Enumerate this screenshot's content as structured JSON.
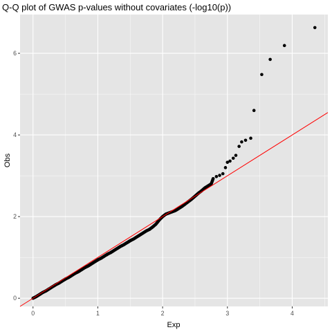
{
  "chart_data": {
    "type": "scatter",
    "title": "Q-Q plot of GWAS p-values without covariates (-log10(p))",
    "xlabel": "Exp",
    "ylabel": "Obs",
    "xlim": [
      -0.2,
      4.55
    ],
    "ylim": [
      -0.2,
      6.95
    ],
    "xticks": [
      0,
      1,
      2,
      3,
      4
    ],
    "yticks": [
      0,
      2,
      4,
      6
    ],
    "grid": true,
    "legend": "none",
    "colors": {
      "panel_background": "#E5E5E5",
      "gridline": "#FFFFFF",
      "points": "#000000",
      "reference_line": "#FF0000",
      "tick_text": "#4D4D4D"
    },
    "reference_line": {
      "slope": 1,
      "intercept": 0
    },
    "series": [
      {
        "values": [
          [
            0.0,
            0.0
          ],
          [
            0.05,
            0.04
          ],
          [
            0.1,
            0.09
          ],
          [
            0.15,
            0.14
          ],
          [
            0.2,
            0.18
          ],
          [
            0.25,
            0.23
          ],
          [
            0.3,
            0.28
          ],
          [
            0.35,
            0.33
          ],
          [
            0.4,
            0.37
          ],
          [
            0.45,
            0.42
          ],
          [
            0.5,
            0.47
          ],
          [
            0.55,
            0.51
          ],
          [
            0.6,
            0.56
          ],
          [
            0.65,
            0.61
          ],
          [
            0.7,
            0.65
          ],
          [
            0.75,
            0.7
          ],
          [
            0.8,
            0.75
          ],
          [
            0.85,
            0.79
          ],
          [
            0.9,
            0.84
          ],
          [
            0.95,
            0.89
          ],
          [
            1.0,
            0.94
          ],
          [
            1.05,
            0.98
          ],
          [
            1.1,
            1.03
          ],
          [
            1.15,
            1.08
          ],
          [
            1.2,
            1.12
          ],
          [
            1.25,
            1.17
          ],
          [
            1.3,
            1.22
          ],
          [
            1.35,
            1.27
          ],
          [
            1.4,
            1.31
          ],
          [
            1.45,
            1.36
          ],
          [
            1.5,
            1.41
          ],
          [
            1.55,
            1.45
          ],
          [
            1.6,
            1.5
          ],
          [
            1.65,
            1.55
          ],
          [
            1.7,
            1.6
          ],
          [
            1.75,
            1.65
          ],
          [
            1.8,
            1.69
          ],
          [
            1.85,
            1.75
          ],
          [
            1.9,
            1.82
          ],
          [
            1.95,
            1.92
          ],
          [
            2.0,
            2.0
          ],
          [
            2.05,
            2.06
          ],
          [
            2.1,
            2.09
          ],
          [
            2.15,
            2.12
          ],
          [
            2.2,
            2.15
          ],
          [
            2.25,
            2.2
          ],
          [
            2.3,
            2.25
          ],
          [
            2.35,
            2.31
          ],
          [
            2.4,
            2.37
          ],
          [
            2.45,
            2.43
          ],
          [
            2.5,
            2.5
          ],
          [
            2.55,
            2.57
          ],
          [
            2.6,
            2.63
          ],
          [
            2.65,
            2.7
          ],
          [
            2.7,
            2.75
          ],
          [
            2.75,
            2.8
          ],
          [
            2.78,
            2.93
          ],
          [
            2.83,
            2.98
          ],
          [
            2.88,
            3.01
          ],
          [
            2.93,
            3.05
          ],
          [
            2.97,
            3.2
          ],
          [
            3.0,
            3.33
          ],
          [
            3.04,
            3.36
          ],
          [
            3.09,
            3.43
          ],
          [
            3.13,
            3.5
          ],
          [
            3.18,
            3.72
          ],
          [
            3.22,
            3.83
          ],
          [
            3.28,
            3.87
          ],
          [
            3.36,
            3.92
          ],
          [
            3.41,
            4.6
          ],
          [
            3.53,
            5.48
          ],
          [
            3.66,
            5.85
          ],
          [
            3.88,
            6.19
          ],
          [
            4.35,
            6.63
          ]
        ]
      }
    ]
  }
}
